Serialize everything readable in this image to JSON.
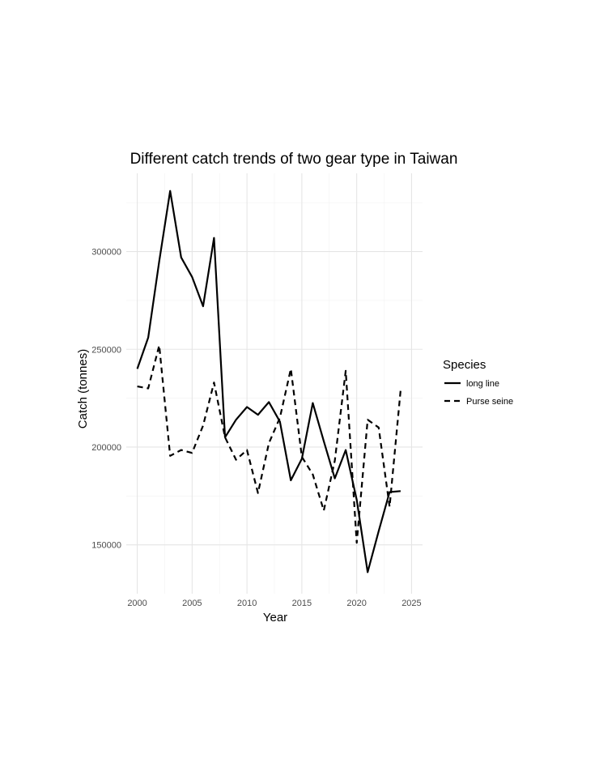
{
  "chart_data": {
    "type": "line",
    "title": "Different catch trends of two gear type in Taiwan",
    "xlabel": "Year",
    "ylabel": "Catch (tonnes)",
    "xlim": [
      1999,
      2026
    ],
    "ylim": [
      125000,
      340000
    ],
    "x_ticks": [
      2000,
      2005,
      2010,
      2015,
      2020,
      2025
    ],
    "y_ticks": [
      150000,
      200000,
      250000,
      300000
    ],
    "x_tick_labels": [
      "2000",
      "2005",
      "2010",
      "2015",
      "2020",
      "2025"
    ],
    "y_tick_labels": [
      "150000",
      "200000",
      "250000",
      "300000"
    ],
    "grid": true,
    "legend": {
      "title": "Species",
      "position": "right"
    },
    "x": [
      2000,
      2001,
      2002,
      2003,
      2004,
      2005,
      2006,
      2007,
      2008,
      2009,
      2010,
      2011,
      2012,
      2013,
      2014,
      2015,
      2016,
      2017,
      2018,
      2019,
      2020,
      2021,
      2022,
      2023,
      2024
    ],
    "series": [
      {
        "name": "long line",
        "line_style": "solid",
        "color": "#000000",
        "values": [
          240000,
          256000,
          295000,
          331000,
          297000,
          287000,
          272000,
          307000,
          205000,
          214000,
          220500,
          216500,
          223000,
          213000,
          183000,
          194000,
          222500,
          203000,
          184000,
          198500,
          173000,
          136000,
          157000,
          177000,
          177500
        ]
      },
      {
        "name": "Purse seine",
        "line_style": "dashed",
        "color": "#000000",
        "values": [
          231000,
          230000,
          252000,
          195500,
          198500,
          197000,
          211000,
          233000,
          205000,
          193500,
          198500,
          176500,
          202000,
          215000,
          240000,
          195000,
          186000,
          167500,
          193000,
          239000,
          151000,
          214000,
          210000,
          169500,
          229000
        ]
      }
    ]
  }
}
